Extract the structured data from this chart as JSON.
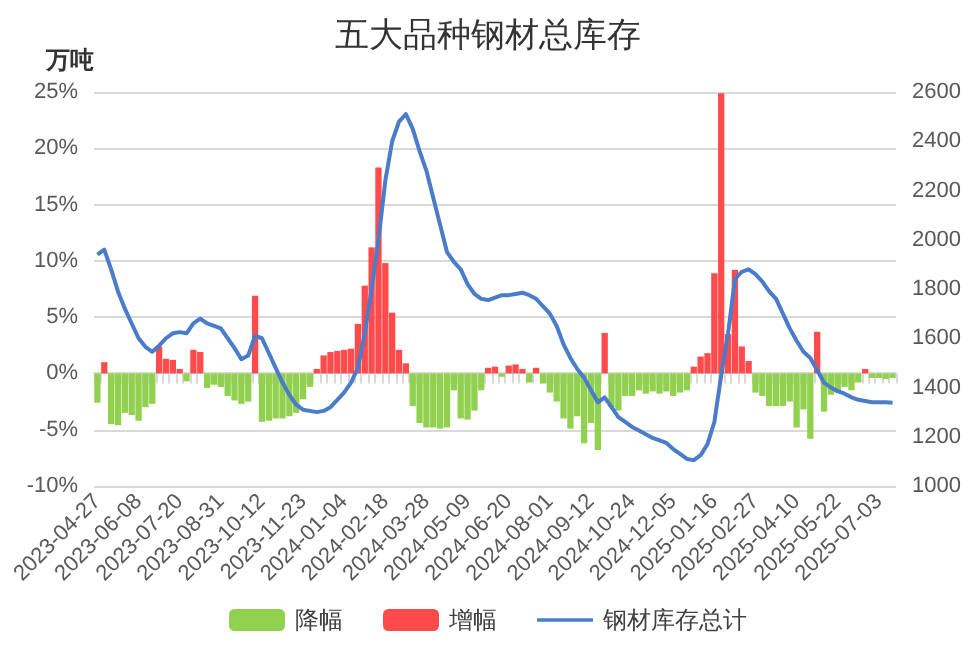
{
  "chart_data": {
    "type": "bar",
    "title": "五大品种钢材总库存",
    "ylabel": "万吨",
    "categories": [
      "2023-04-27",
      null,
      null,
      null,
      null,
      null,
      "2023-06-08",
      null,
      null,
      null,
      null,
      null,
      "2023-07-20",
      null,
      null,
      null,
      null,
      null,
      "2023-08-31",
      null,
      null,
      null,
      null,
      null,
      "2023-10-12",
      null,
      null,
      null,
      null,
      null,
      "2023-11-23",
      null,
      null,
      null,
      null,
      null,
      "2024-01-04",
      null,
      null,
      null,
      null,
      null,
      "2024-02-18",
      null,
      null,
      null,
      null,
      null,
      "2024-03-28",
      null,
      null,
      null,
      null,
      null,
      "2024-05-09",
      null,
      null,
      null,
      null,
      null,
      "2024-06-20",
      null,
      null,
      null,
      null,
      null,
      "2024-08-01",
      null,
      null,
      null,
      null,
      null,
      "2024-09-12",
      null,
      null,
      null,
      null,
      null,
      "2024-10-24",
      null,
      null,
      null,
      null,
      null,
      "2024-12-05",
      null,
      null,
      null,
      null,
      null,
      "2025-01-16",
      null,
      null,
      null,
      null,
      null,
      "2025-02-27",
      null,
      null,
      null,
      null,
      null,
      "2025-04-10",
      null,
      null,
      null,
      null,
      null,
      "2025-05-22",
      null,
      null,
      null,
      null,
      null,
      "2025-07-03",
      null,
      null
    ],
    "series": [
      {
        "name": "降幅",
        "color": "#92d050",
        "values": [
          -2.6,
          null,
          -4.5,
          -4.6,
          -3.5,
          -3.7,
          -4.2,
          -3.0,
          -2.7,
          null,
          null,
          null,
          null,
          -0.7,
          null,
          null,
          -1.3,
          -1.0,
          -1.2,
          -2.0,
          -2.4,
          -2.7,
          -2.5,
          null,
          -4.3,
          -4.2,
          -4.0,
          -4.0,
          -3.8,
          -3.5,
          -2.3,
          -1.2,
          null,
          null,
          null,
          null,
          null,
          null,
          null,
          null,
          null,
          null,
          null,
          null,
          null,
          null,
          -2.9,
          -4.4,
          -4.8,
          -4.8,
          -4.9,
          -4.8,
          -1.5,
          -4.0,
          -4.1,
          -3.3,
          -1.5,
          null,
          null,
          -0.3,
          null,
          null,
          null,
          -0.8,
          null,
          -0.9,
          -1.7,
          -2.5,
          -4.0,
          -4.9,
          -3.8,
          -6.2,
          -4.4,
          -6.8,
          null,
          -3.0,
          -3.3,
          -2.0,
          -2.0,
          -1.5,
          -1.8,
          -1.6,
          -1.8,
          -1.6,
          -2.0,
          -1.7,
          -1.5,
          null,
          null,
          null,
          null,
          null,
          null,
          null,
          null,
          null,
          -1.7,
          -2.0,
          -2.9,
          -2.9,
          -2.9,
          -2.5,
          -4.8,
          -3.2,
          -5.8,
          null,
          -3.4,
          -1.9,
          -1.7,
          -1.2,
          -1.5,
          -0.8,
          null,
          -0.4,
          -0.4,
          -0.5,
          -0.4
        ]
      },
      {
        "name": "增幅",
        "color": "#ff4b4b",
        "values": [
          null,
          1.0,
          null,
          null,
          null,
          null,
          null,
          null,
          null,
          2.4,
          1.3,
          1.2,
          0.4,
          null,
          2.1,
          1.9,
          null,
          null,
          null,
          null,
          null,
          null,
          null,
          6.9,
          null,
          null,
          null,
          null,
          null,
          null,
          null,
          null,
          0.4,
          1.6,
          1.9,
          2.0,
          2.1,
          2.2,
          4.4,
          7.8,
          11.2,
          18.3,
          9.8,
          5.4,
          2.1,
          0.9,
          null,
          null,
          null,
          null,
          null,
          null,
          null,
          null,
          null,
          null,
          null,
          0.5,
          0.6,
          null,
          0.7,
          0.8,
          0.4,
          null,
          0.5,
          null,
          null,
          null,
          null,
          null,
          null,
          null,
          null,
          null,
          3.6,
          null,
          null,
          null,
          null,
          null,
          null,
          null,
          null,
          null,
          null,
          null,
          null,
          0.6,
          1.5,
          1.8,
          8.9,
          24.9,
          3.5,
          9.2,
          2.4,
          1.1,
          null,
          null,
          null,
          null,
          null,
          null,
          null,
          null,
          null,
          3.7,
          null,
          null,
          null,
          null,
          null,
          null,
          0.4,
          null,
          null,
          null,
          null
        ]
      },
      {
        "name": "钢材库存总计",
        "type": "line",
        "axis": "y2",
        "color": "#4a7cc9",
        "values": [
          1940,
          1960,
          1880,
          1790,
          1720,
          1660,
          1600,
          1565,
          1545,
          1570,
          1600,
          1620,
          1625,
          1620,
          1660,
          1680,
          1660,
          1650,
          1640,
          1600,
          1560,
          1515,
          1530,
          1610,
          1600,
          1540,
          1480,
          1420,
          1370,
          1330,
          1310,
          1305,
          1300,
          1305,
          1320,
          1350,
          1380,
          1420,
          1480,
          1620,
          1800,
          2000,
          2240,
          2400,
          2480,
          2510,
          2450,
          2360,
          2280,
          2170,
          2060,
          1950,
          1910,
          1880,
          1820,
          1780,
          1760,
          1755,
          1765,
          1775,
          1775,
          1780,
          1785,
          1775,
          1760,
          1730,
          1700,
          1650,
          1575,
          1520,
          1475,
          1440,
          1390,
          1340,
          1360,
          1320,
          1280,
          1260,
          1240,
          1225,
          1210,
          1195,
          1185,
          1175,
          1150,
          1130,
          1110,
          1105,
          1125,
          1170,
          1260,
          1450,
          1620,
          1840,
          1870,
          1880,
          1860,
          1830,
          1790,
          1760,
          1700,
          1640,
          1590,
          1545,
          1520,
          1470,
          1420,
          1400,
          1385,
          1375,
          1360,
          1350,
          1345,
          1340,
          1340,
          1340,
          1338
        ]
      }
    ],
    "ylim": [
      -10,
      25
    ],
    "yticks": [
      {
        "value": -10,
        "label": "-10%"
      },
      {
        "value": -5,
        "label": "-5%"
      },
      {
        "value": 0,
        "label": "0%"
      },
      {
        "value": 5,
        "label": "5%"
      },
      {
        "value": 10,
        "label": "10%"
      },
      {
        "value": 15,
        "label": "15%"
      },
      {
        "value": 20,
        "label": "20%"
      },
      {
        "value": 25,
        "label": "25%"
      }
    ],
    "y2lim": [
      1000,
      2600
    ],
    "y2ticks": [
      1000,
      1200,
      1400,
      1600,
      1800,
      2000,
      2200,
      2400,
      2600
    ],
    "grid": "y",
    "legend": "bottom"
  }
}
